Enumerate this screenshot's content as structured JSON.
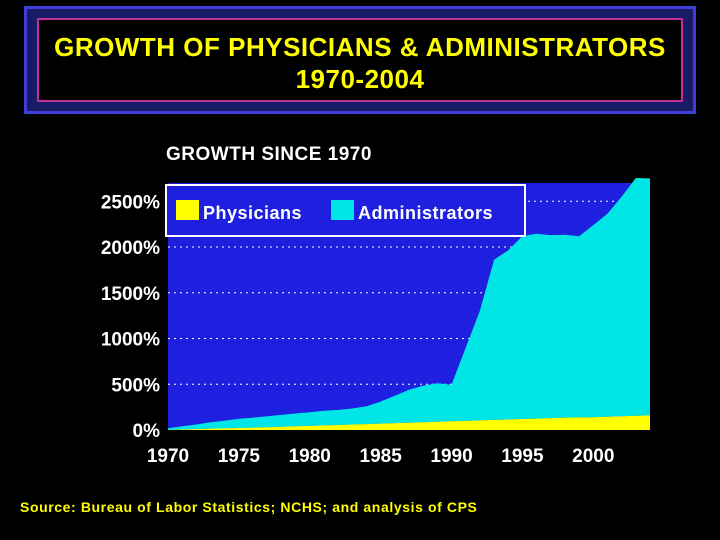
{
  "title": {
    "line1": "GROWTH OF PHYSICIANS & ADMINISTRATORS",
    "line2": "1970-2004"
  },
  "subtitle": "GROWTH SINCE 1970",
  "source": "Source: Bureau of Labor Statistics; NCHS; and analysis of CPS",
  "colors": {
    "plot_background": "#1f1fe0",
    "physicians": "#ffff00",
    "administrators": "#00e5e5",
    "legend_background": "#1f1fe0"
  },
  "chart_data": {
    "type": "area",
    "stacked": true,
    "x": [
      1970,
      1971,
      1972,
      1973,
      1974,
      1975,
      1976,
      1977,
      1978,
      1979,
      1980,
      1981,
      1982,
      1983,
      1984,
      1985,
      1986,
      1987,
      1988,
      1989,
      1990,
      1991,
      1992,
      1993,
      1994,
      1995,
      1996,
      1997,
      1998,
      1999,
      2000,
      2001,
      2002,
      2003,
      2004
    ],
    "series": [
      {
        "name": "Physicians",
        "values": [
          0,
          5,
          10,
          15,
          18,
          22,
          26,
          30,
          35,
          40,
          45,
          50,
          55,
          60,
          65,
          70,
          75,
          80,
          85,
          90,
          95,
          100,
          105,
          110,
          115,
          120,
          125,
          130,
          135,
          138,
          140,
          145,
          150,
          155,
          160
        ]
      },
      {
        "name": "Administrators",
        "values": [
          20,
          35,
          50,
          70,
          85,
          100,
          110,
          120,
          130,
          140,
          150,
          160,
          165,
          175,
          195,
          240,
          300,
          360,
          400,
          420,
          400,
          800,
          1200,
          1750,
          1850,
          2000,
          2020,
          2000,
          2000,
          1980,
          2100,
          2220,
          2400,
          2600,
          2590
        ]
      }
    ],
    "ylim": [
      0,
      2700
    ],
    "yticks": [
      0,
      500,
      1000,
      1500,
      2000,
      2500
    ],
    "ytick_labels": [
      "0%",
      "500%",
      "1000%",
      "1500%",
      "2000%",
      "2500%"
    ],
    "xticks": [
      1970,
      1975,
      1980,
      1985,
      1990,
      1995,
      2000
    ],
    "xtick_labels": [
      "1970",
      "1975",
      "1980",
      "1985",
      "1990",
      "1995",
      "2000"
    ],
    "grid": "horizontal dotted",
    "legend": [
      "Physicians",
      "Administrators"
    ],
    "legend_position": "top-left"
  }
}
